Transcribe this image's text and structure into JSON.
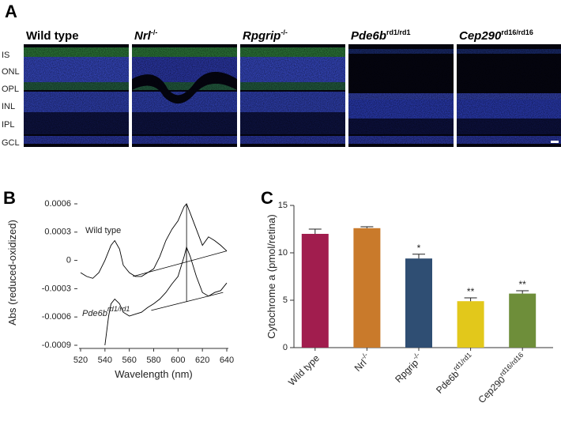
{
  "panel_a": {
    "label": "A",
    "columns": [
      {
        "name": "Wild type"
      },
      {
        "name": "Nrl",
        "sup": "-/-"
      },
      {
        "name": "Rpgrip",
        "sup": "-/-"
      },
      {
        "name": "Pde6b",
        "sup": "rd1/rd1"
      },
      {
        "name": "Cep290",
        "sup": "rd16/rd16"
      }
    ],
    "rows": [
      "IS",
      "ONL",
      "OPL",
      "INL",
      "IPL",
      "GCL"
    ]
  },
  "chart_data": [
    {
      "type": "line",
      "panel_label": "B",
      "xlabel": "Wavelength (nm)",
      "ylabel": "Abs (reduced-oxidized)",
      "xlim": [
        520,
        640
      ],
      "xticks": [
        520,
        540,
        560,
        580,
        600,
        620,
        640
      ],
      "ylim": [
        -0.0009,
        0.0006
      ],
      "yticks": [
        0.0006,
        0.0003,
        0,
        -0.0003,
        -0.0006,
        -0.0009
      ],
      "series": [
        {
          "name": "Wild type",
          "color": "#000000",
          "x": [
            520,
            525,
            530,
            535,
            540,
            545,
            548,
            552,
            555,
            560,
            565,
            570,
            575,
            580,
            585,
            590,
            595,
            600,
            605,
            607,
            610,
            615,
            620,
            625,
            630,
            635,
            640
          ],
          "values": [
            -0.00013,
            -0.00017,
            -0.00019,
            -0.00013,
            0,
            0.00016,
            0.00021,
            0.00012,
            -5e-05,
            -0.00013,
            -0.00017,
            -0.00017,
            -0.00013,
            -9e-05,
            4e-05,
            0.00021,
            0.00033,
            0.00042,
            0.00057,
            0.0006,
            0.0005,
            0.00033,
            0.00016,
            0.00025,
            0.00021,
            0.00016,
            0.0001
          ],
          "baseline": {
            "x": [
              563,
              640
            ],
            "values": [
              -0.00017,
              0.0001
            ]
          },
          "peak_line": {
            "x": 607,
            "values": [
              0.0006,
              -2e-05
            ]
          }
        },
        {
          "name": "Pde6b",
          "name_sup": "rd1/rd1",
          "color": "#000000",
          "x": [
            540,
            543,
            545,
            548,
            552,
            555,
            560,
            565,
            570,
            575,
            580,
            585,
            590,
            595,
            600,
            605,
            607,
            610,
            615,
            620,
            625,
            630,
            635,
            640
          ],
          "values": [
            -0.0009,
            -0.00059,
            -0.00046,
            -0.00041,
            -0.00046,
            -0.00055,
            -0.00059,
            -0.00057,
            -0.00055,
            -0.0005,
            -0.00046,
            -0.00041,
            -0.00034,
            -0.00025,
            -0.00017,
            4e-05,
            0.00014,
            4e-05,
            -0.00017,
            -0.00034,
            -0.00038,
            -0.00034,
            -0.00032,
            -0.00024
          ],
          "baseline": {
            "x": [
              578,
              637
            ],
            "values": [
              -0.00053,
              -0.00034
            ]
          },
          "peak_line": {
            "x": 607,
            "values": [
              0.00014,
              -0.00044
            ]
          }
        }
      ]
    },
    {
      "type": "bar",
      "panel_label": "C",
      "ylabel": "Cytochrome a (pmol/retina)",
      "categories": [
        "Wild type",
        "Nrl",
        "Rpgrip",
        "Pde6b",
        "Cep290"
      ],
      "category_sups": [
        null,
        "-/-",
        "-/-",
        "rd1/rd1",
        "rd16/rd16"
      ],
      "values": [
        12.0,
        12.6,
        9.4,
        4.9,
        5.7
      ],
      "errors": [
        0.5,
        0.15,
        0.45,
        0.35,
        0.3
      ],
      "significance": [
        null,
        null,
        "*",
        "**",
        "**"
      ],
      "colors": [
        "#a11d4e",
        "#c97a2b",
        "#2f4e73",
        "#e2c81b",
        "#6e8e3a"
      ],
      "ylim": [
        0,
        15
      ],
      "yticks": [
        0,
        5,
        10,
        15
      ]
    }
  ]
}
